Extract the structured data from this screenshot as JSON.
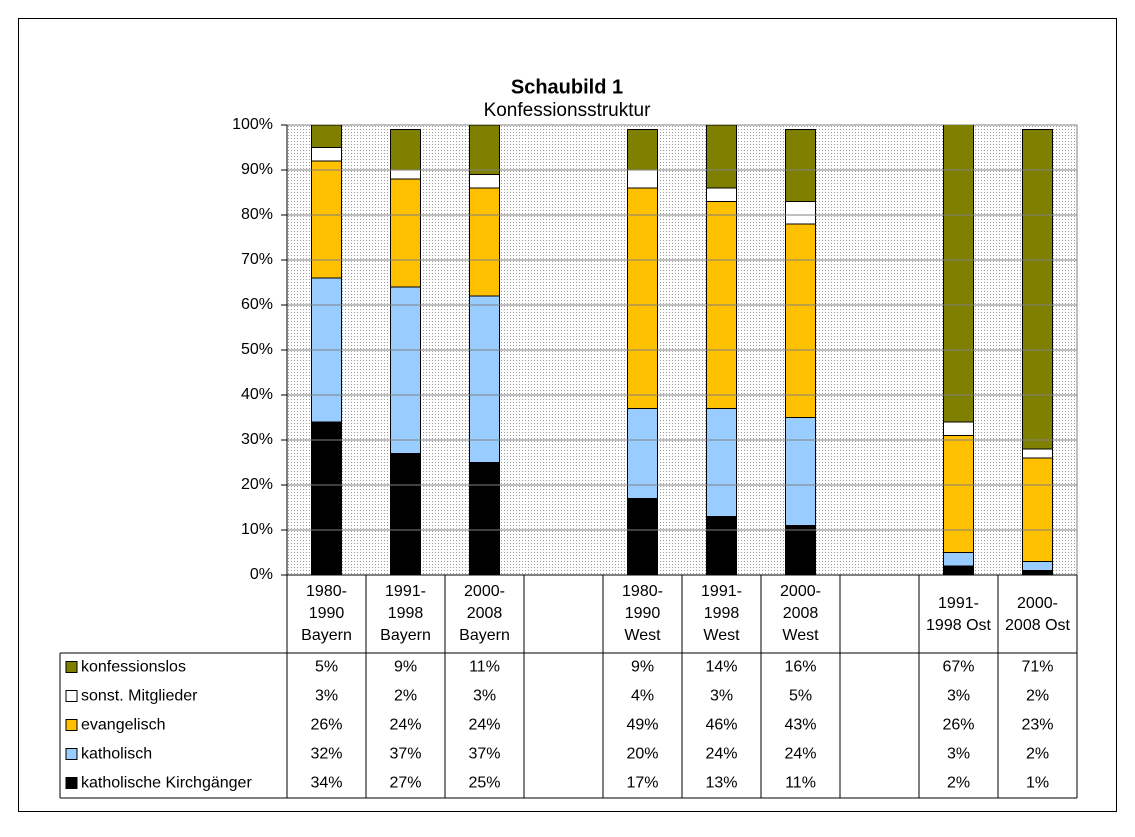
{
  "chart_data": {
    "type": "stacked-bar",
    "title": "Schaubild 1",
    "subtitle": "Konfessionsstruktur",
    "categories": [
      [
        "1980-",
        "1990",
        "Bayern"
      ],
      [
        "1991-",
        "1998",
        "Bayern"
      ],
      [
        "2000-",
        "2008",
        "Bayern"
      ],
      null,
      [
        "1980-",
        "1990",
        "West"
      ],
      [
        "1991-",
        "1998",
        "West"
      ],
      [
        "2000-",
        "2008",
        "West"
      ],
      null,
      [
        "1991-",
        "1998 Ost"
      ],
      [
        "2000-",
        "2008 Ost"
      ]
    ],
    "series": [
      {
        "name": "konfessionslos",
        "color": "#808000",
        "values": [
          5,
          9,
          11,
          null,
          9,
          14,
          16,
          null,
          67,
          71
        ],
        "value_labels": [
          "5%",
          "9%",
          "11%",
          null,
          "9%",
          "14%",
          "16%",
          null,
          "67%",
          "71%"
        ]
      },
      {
        "name": "sonst. Mitglieder",
        "color": "#ffffff",
        "values": [
          3,
          2,
          3,
          null,
          4,
          3,
          5,
          null,
          3,
          2
        ],
        "value_labels": [
          "3%",
          "2%",
          "3%",
          null,
          "4%",
          "3%",
          "5%",
          null,
          "3%",
          "2%"
        ]
      },
      {
        "name": "evangelisch",
        "color": "#ffc000",
        "values": [
          26,
          24,
          24,
          null,
          49,
          46,
          43,
          null,
          26,
          23
        ],
        "value_labels": [
          "26%",
          "24%",
          "24%",
          null,
          "49%",
          "46%",
          "43%",
          null,
          "26%",
          "23%"
        ]
      },
      {
        "name": "katholisch",
        "color": "#99ccff",
        "values": [
          32,
          37,
          37,
          null,
          20,
          24,
          24,
          null,
          3,
          2
        ],
        "value_labels": [
          "32%",
          "37%",
          "37%",
          null,
          "20%",
          "24%",
          "24%",
          null,
          "3%",
          "2%"
        ]
      },
      {
        "name": "katholische Kirchgänger",
        "color": "#000000",
        "values": [
          34,
          27,
          25,
          null,
          17,
          13,
          11,
          null,
          2,
          1
        ],
        "value_labels": [
          "34%",
          "27%",
          "25%",
          null,
          "17%",
          "13%",
          "11%",
          null,
          "2%",
          "1%"
        ]
      }
    ],
    "ylim": [
      0,
      100
    ],
    "yticks": [
      {
        "value": 0,
        "label": "0%"
      },
      {
        "value": 10,
        "label": "10%"
      },
      {
        "value": 20,
        "label": "20%"
      },
      {
        "value": 30,
        "label": "30%"
      },
      {
        "value": 40,
        "label": "40%"
      },
      {
        "value": 50,
        "label": "50%"
      },
      {
        "value": 60,
        "label": "60%"
      },
      {
        "value": 70,
        "label": "70%"
      },
      {
        "value": 80,
        "label": "80%"
      },
      {
        "value": 90,
        "label": "90%"
      },
      {
        "value": 100,
        "label": "100%"
      }
    ],
    "grid": true
  }
}
